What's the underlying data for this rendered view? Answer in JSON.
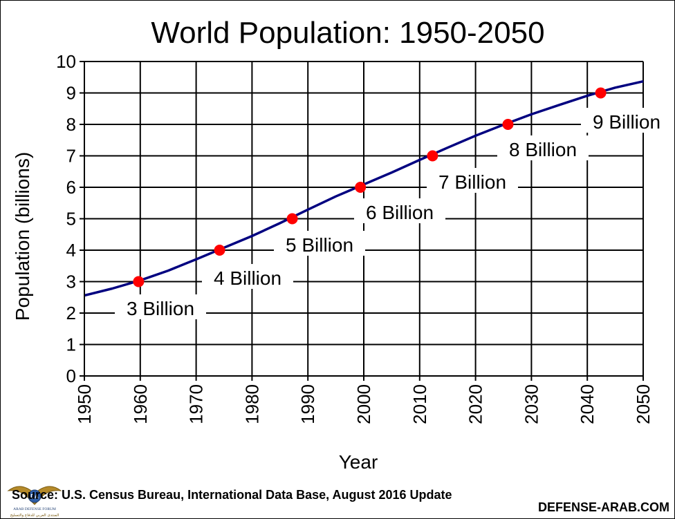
{
  "chart_data": {
    "type": "line",
    "title": "World Population: 1950-2050",
    "xlabel": "Year",
    "ylabel": "Population  (billions)",
    "xlim": [
      1950,
      2050
    ],
    "ylim": [
      0,
      10
    ],
    "grid": true,
    "x_ticks": [
      "1950",
      "1960",
      "1970",
      "1980",
      "1990",
      "2000",
      "2010",
      "2020",
      "2030",
      "2040",
      "2050"
    ],
    "y_ticks": [
      "0",
      "1",
      "2",
      "3",
      "4",
      "5",
      "6",
      "7",
      "8",
      "9",
      "10"
    ],
    "line_color": "#000080",
    "marker_color": "#ff0000",
    "series": [
      {
        "x": [
          1950,
          1955,
          1960,
          1965,
          1970,
          1975,
          1980,
          1985,
          1990,
          1995,
          2000,
          2005,
          2010,
          2015,
          2020,
          2025,
          2030,
          2035,
          2040,
          2045,
          2050
        ],
        "values": [
          2.56,
          2.78,
          3.04,
          3.35,
          3.71,
          4.08,
          4.45,
          4.86,
          5.29,
          5.71,
          6.09,
          6.47,
          6.87,
          7.26,
          7.64,
          7.99,
          8.32,
          8.62,
          8.91,
          9.17,
          9.37
        ]
      }
    ],
    "annotations": [
      {
        "x": 1959.7,
        "y": 3,
        "label": "3 Billion"
      },
      {
        "x": 1974.2,
        "y": 4,
        "label": "4 Billion"
      },
      {
        "x": 1987.2,
        "y": 5,
        "label": "5 Billion"
      },
      {
        "x": 1999.4,
        "y": 6,
        "label": "6 Billion"
      },
      {
        "x": 2012.3,
        "y": 7,
        "label": "7 Billion"
      },
      {
        "x": 2025.8,
        "y": 8,
        "label": "8 Billion"
      },
      {
        "x": 2042.4,
        "y": 9,
        "label": "9 Billion"
      }
    ]
  },
  "source": "Source: U.S. Census Bureau, International Data Base, August 2016 Update",
  "watermark": "DEFENSE-ARAB.COM",
  "logo": {
    "text": "ARAB DEFENSE FORUM",
    "arabic": "المنتدى العربي للدفاع والتسليح",
    "mark": "DA"
  }
}
